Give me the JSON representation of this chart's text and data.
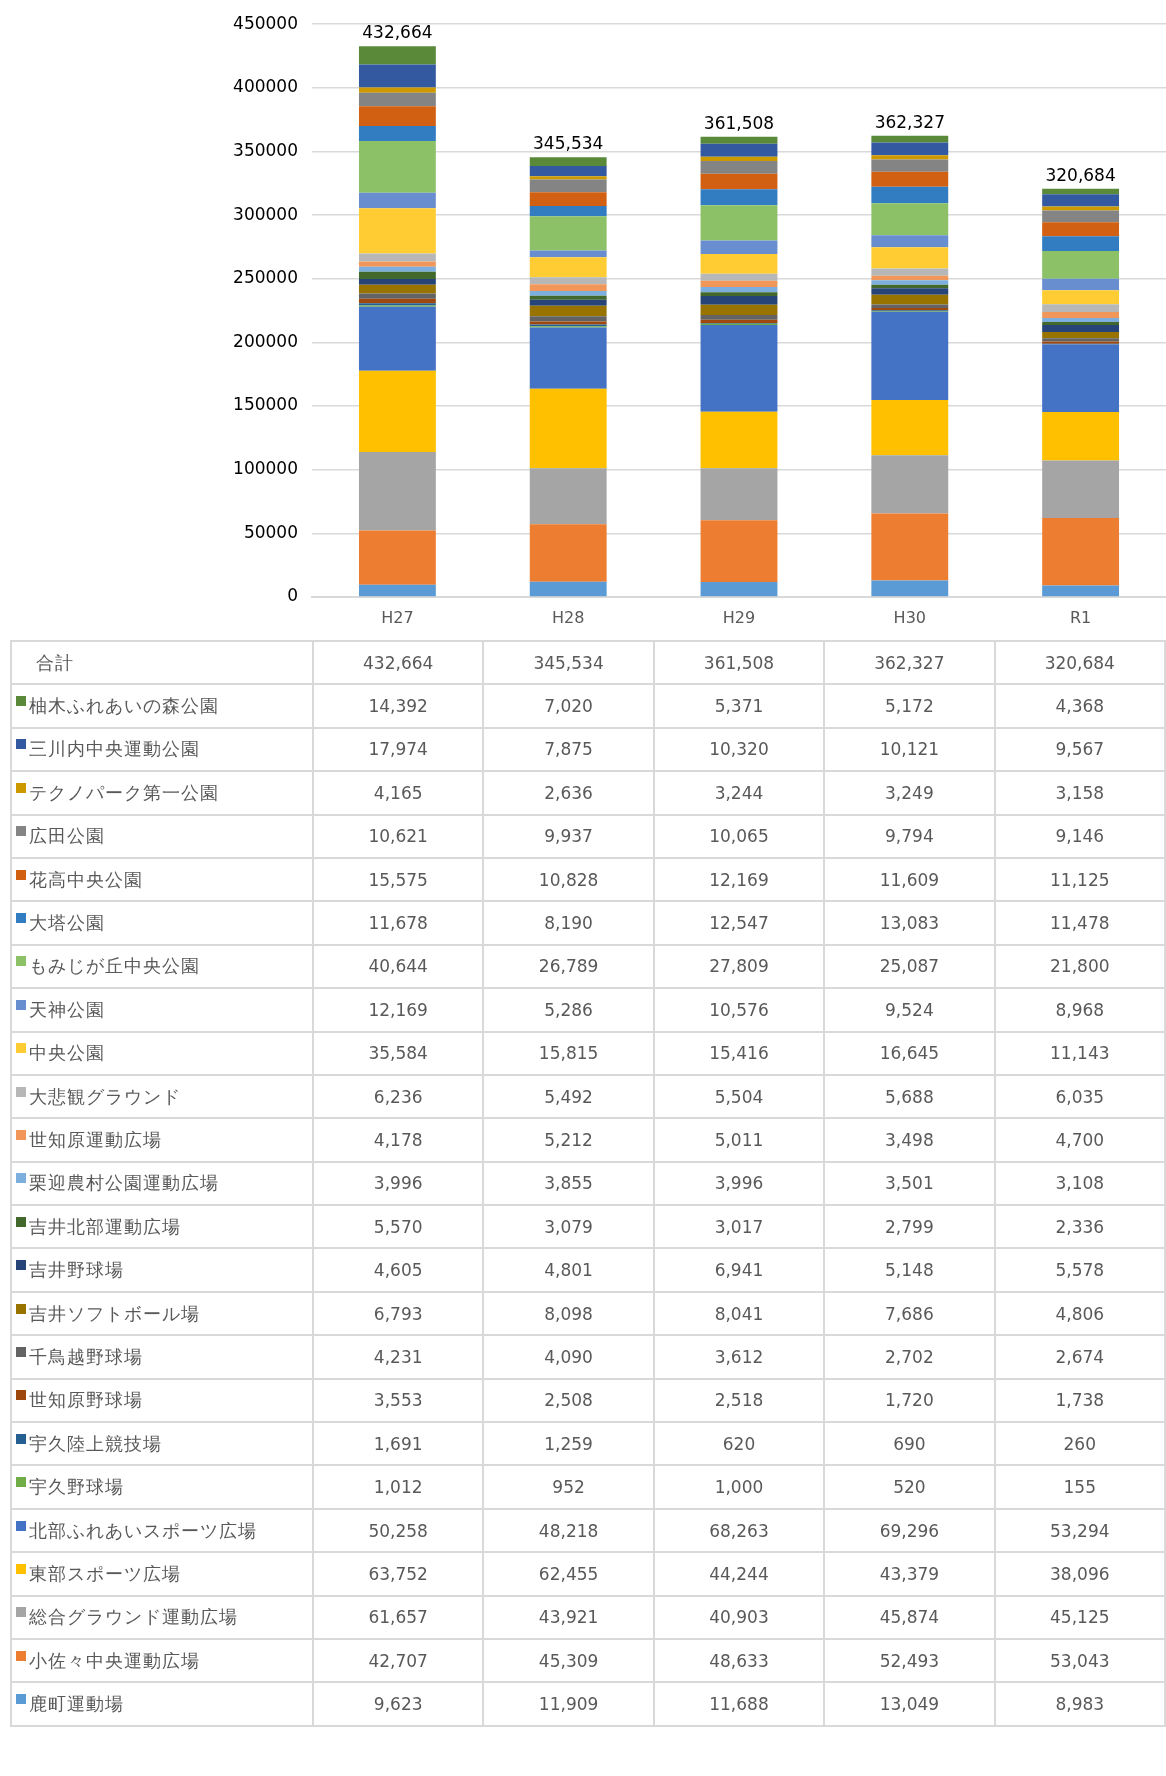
{
  "chart_data": {
    "type": "bar",
    "stacked": true,
    "categories": [
      "H27",
      "H28",
      "H29",
      "H30",
      "R1"
    ],
    "ylim": [
      0,
      450000
    ],
    "yticks": [
      0,
      50000,
      100000,
      150000,
      200000,
      250000,
      300000,
      350000,
      400000,
      450000
    ],
    "grid": "y",
    "legend": "bottom",
    "totals": [
      "432,664",
      "345,534",
      "361,508",
      "362,327",
      "320,684"
    ],
    "annotations": [
      "合計"
    ],
    "series": [
      {
        "name": "鹿町運動場",
        "color": "#5b9bd5",
        "values": [
          9623,
          11909,
          11688,
          13049,
          8983
        ],
        "value_labels": [
          "9,623",
          "11,909",
          "11,688",
          "13,049",
          "8,983"
        ]
      },
      {
        "name": "小佐々中央運動広場",
        "color": "#ed7d31",
        "values": [
          42707,
          45309,
          48633,
          52493,
          53043
        ],
        "value_labels": [
          "42,707",
          "45,309",
          "48,633",
          "52,493",
          "53,043"
        ]
      },
      {
        "name": "総合グラウンド運動広場",
        "color": "#a5a5a5",
        "values": [
          61657,
          43921,
          40903,
          45874,
          45125
        ],
        "value_labels": [
          "61,657",
          "43,921",
          "40,903",
          "45,874",
          "45,125"
        ]
      },
      {
        "name": "東部スポーツ広場",
        "color": "#ffc000",
        "values": [
          63752,
          62455,
          44244,
          43379,
          38096
        ],
        "value_labels": [
          "63,752",
          "62,455",
          "44,244",
          "43,379",
          "38,096"
        ]
      },
      {
        "name": "北部ふれあいスポーツ広場",
        "color": "#4472c4",
        "values": [
          50258,
          48218,
          68263,
          69296,
          53294
        ],
        "value_labels": [
          "50,258",
          "48,218",
          "68,263",
          "69,296",
          "53,294"
        ]
      },
      {
        "name": "宇久野球場",
        "color": "#70ad47",
        "values": [
          1012,
          952,
          1000,
          520,
          155
        ],
        "value_labels": [
          "1,012",
          "952",
          "1,000",
          "520",
          "155"
        ]
      },
      {
        "name": "宇久陸上競技場",
        "color": "#255e91",
        "values": [
          1691,
          1259,
          620,
          690,
          260
        ],
        "value_labels": [
          "1,691",
          "1,259",
          "620",
          "690",
          "260"
        ]
      },
      {
        "name": "世知原野球場",
        "color": "#9e480e",
        "values": [
          3553,
          2508,
          2518,
          1720,
          1738
        ],
        "value_labels": [
          "3,553",
          "2,508",
          "2,518",
          "1,720",
          "1,738"
        ]
      },
      {
        "name": "千鳥越野球場",
        "color": "#636363",
        "values": [
          4231,
          4090,
          3612,
          2702,
          2674
        ],
        "value_labels": [
          "4,231",
          "4,090",
          "3,612",
          "2,702",
          "2,674"
        ]
      },
      {
        "name": "吉井ソフトボール場",
        "color": "#997300",
        "values": [
          6793,
          8098,
          8041,
          7686,
          4806
        ],
        "value_labels": [
          "6,793",
          "8,098",
          "8,041",
          "7,686",
          "4,806"
        ]
      },
      {
        "name": "吉井野球場",
        "color": "#264478",
        "values": [
          4605,
          4801,
          6941,
          5148,
          5578
        ],
        "value_labels": [
          "4,605",
          "4,801",
          "6,941",
          "5,148",
          "5,578"
        ]
      },
      {
        "name": "吉井北部運動広場",
        "color": "#43682b",
        "values": [
          5570,
          3079,
          3017,
          2799,
          2336
        ],
        "value_labels": [
          "5,570",
          "3,079",
          "3,017",
          "2,799",
          "2,336"
        ]
      },
      {
        "name": "栗迎農村公園運動広場",
        "color": "#7cafdd",
        "values": [
          3996,
          3855,
          3996,
          3501,
          3108
        ],
        "value_labels": [
          "3,996",
          "3,855",
          "3,996",
          "3,501",
          "3,108"
        ]
      },
      {
        "name": "世知原運動広場",
        "color": "#f1975a",
        "values": [
          4178,
          5212,
          5011,
          3498,
          4700
        ],
        "value_labels": [
          "4,178",
          "5,212",
          "5,011",
          "3,498",
          "4,700"
        ]
      },
      {
        "name": "大悲観グラウンド",
        "color": "#b7b7b7",
        "values": [
          6236,
          5492,
          5504,
          5688,
          6035
        ],
        "value_labels": [
          "6,236",
          "5,492",
          "5,504",
          "5,688",
          "6,035"
        ]
      },
      {
        "name": "中央公園",
        "color": "#ffcd33",
        "values": [
          35584,
          15815,
          15416,
          16645,
          11143
        ],
        "value_labels": [
          "35,584",
          "15,815",
          "15,416",
          "16,645",
          "11,143"
        ]
      },
      {
        "name": "天神公園",
        "color": "#698ed0",
        "values": [
          12169,
          5286,
          10576,
          9524,
          8968
        ],
        "value_labels": [
          "12,169",
          "5,286",
          "10,576",
          "9,524",
          "8,968"
        ]
      },
      {
        "name": "もみじが丘中央公園",
        "color": "#8cc168",
        "values": [
          40644,
          26789,
          27809,
          25087,
          21800
        ],
        "value_labels": [
          "40,644",
          "26,789",
          "27,809",
          "25,087",
          "21,800"
        ]
      },
      {
        "name": "大塔公園",
        "color": "#327dc2",
        "values": [
          11678,
          8190,
          12547,
          13083,
          11478
        ],
        "value_labels": [
          "11,678",
          "8,190",
          "12,547",
          "13,083",
          "11,478"
        ]
      },
      {
        "name": "花高中央公園",
        "color": "#d26012",
        "values": [
          15575,
          10828,
          12169,
          11609,
          11125
        ],
        "value_labels": [
          "15,575",
          "10,828",
          "12,169",
          "11,609",
          "11,125"
        ]
      },
      {
        "name": "広田公園",
        "color": "#848484",
        "values": [
          10621,
          9937,
          10065,
          9794,
          9146
        ],
        "value_labels": [
          "10,621",
          "9,937",
          "10,065",
          "9,794",
          "9,146"
        ]
      },
      {
        "name": "テクノパーク第一公園",
        "color": "#cc9a00",
        "values": [
          4165,
          2636,
          3244,
          3249,
          3158
        ],
        "value_labels": [
          "4,165",
          "2,636",
          "3,244",
          "3,249",
          "3,158"
        ]
      },
      {
        "name": "三川内中央運動公園",
        "color": "#335aa1",
        "values": [
          17974,
          7875,
          10320,
          10121,
          9567
        ],
        "value_labels": [
          "17,974",
          "7,875",
          "10,320",
          "10,121",
          "9,567"
        ]
      },
      {
        "name": "柚木ふれあいの森公園",
        "color": "#5a8a39",
        "values": [
          14392,
          7020,
          5371,
          5172,
          4368
        ],
        "value_labels": [
          "14,392",
          "7,020",
          "5,371",
          "5,172",
          "4,368"
        ]
      }
    ]
  }
}
